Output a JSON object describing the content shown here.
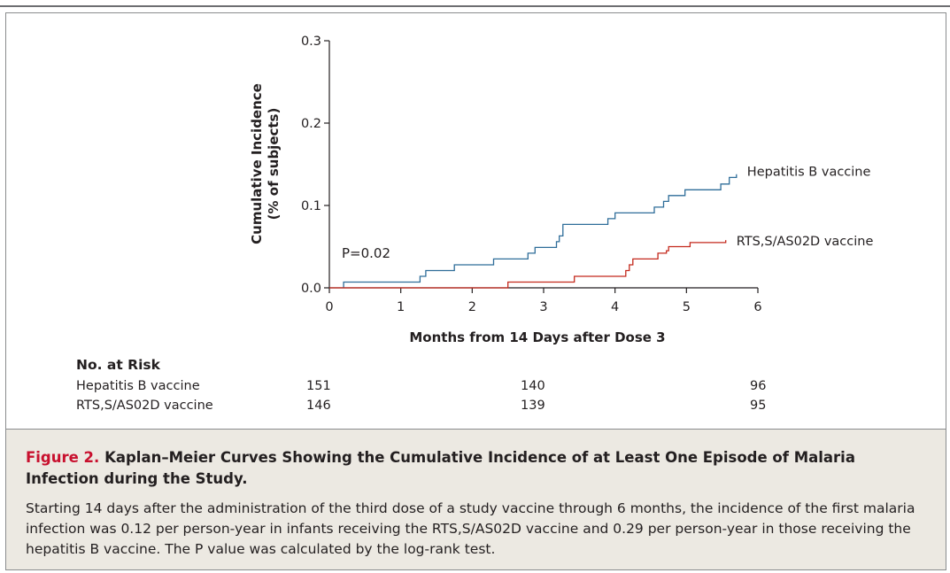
{
  "chart_data": {
    "type": "line",
    "ylabel": "Cumulative Incidence",
    "ylabel_sub": "(% of subjects)",
    "xlabel": "Months from 14 Days after Dose 3",
    "x_ticks": [
      "0",
      "1",
      "2",
      "3",
      "4",
      "5",
      "6"
    ],
    "y_ticks": [
      "0.0",
      "0.1",
      "0.2",
      "0.3"
    ],
    "xlim": [
      0,
      6
    ],
    "ylim": [
      0,
      0.3
    ],
    "grid": false,
    "annotation": "P=0.02",
    "series": [
      {
        "name": "Hepatitis B vaccine",
        "color": "#2e6d99",
        "points": [
          [
            0.2,
            0.0
          ],
          [
            0.2,
            0.007
          ],
          [
            1.27,
            0.007
          ],
          [
            1.27,
            0.014
          ],
          [
            1.35,
            0.014
          ],
          [
            1.35,
            0.021
          ],
          [
            1.75,
            0.021
          ],
          [
            1.75,
            0.028
          ],
          [
            2.3,
            0.028
          ],
          [
            2.3,
            0.035
          ],
          [
            2.78,
            0.035
          ],
          [
            2.78,
            0.042
          ],
          [
            2.88,
            0.042
          ],
          [
            2.88,
            0.049
          ],
          [
            3.18,
            0.049
          ],
          [
            3.18,
            0.056
          ],
          [
            3.22,
            0.056
          ],
          [
            3.22,
            0.063
          ],
          [
            3.27,
            0.063
          ],
          [
            3.27,
            0.077
          ],
          [
            3.9,
            0.077
          ],
          [
            3.9,
            0.084
          ],
          [
            4.0,
            0.084
          ],
          [
            4.0,
            0.091
          ],
          [
            4.55,
            0.091
          ],
          [
            4.55,
            0.098
          ],
          [
            4.68,
            0.098
          ],
          [
            4.68,
            0.105
          ],
          [
            4.75,
            0.105
          ],
          [
            4.75,
            0.112
          ],
          [
            4.98,
            0.112
          ],
          [
            4.98,
            0.119
          ],
          [
            5.48,
            0.119
          ],
          [
            5.48,
            0.126
          ],
          [
            5.6,
            0.126
          ],
          [
            5.6,
            0.134
          ],
          [
            5.7,
            0.134
          ],
          [
            5.7,
            0.138
          ]
        ]
      },
      {
        "name": "RTS,S/AS02D vaccine",
        "color": "#c4281c",
        "points": [
          [
            0.0,
            0.0
          ],
          [
            2.5,
            0.0
          ],
          [
            2.5,
            0.007
          ],
          [
            3.43,
            0.007
          ],
          [
            3.43,
            0.014
          ],
          [
            4.15,
            0.014
          ],
          [
            4.15,
            0.021
          ],
          [
            4.2,
            0.021
          ],
          [
            4.2,
            0.028
          ],
          [
            4.25,
            0.028
          ],
          [
            4.25,
            0.035
          ],
          [
            4.6,
            0.035
          ],
          [
            4.6,
            0.042
          ],
          [
            4.72,
            0.042
          ],
          [
            4.72,
            0.045
          ],
          [
            4.75,
            0.045
          ],
          [
            4.75,
            0.05
          ],
          [
            5.05,
            0.05
          ],
          [
            5.05,
            0.055
          ],
          [
            5.55,
            0.055
          ],
          [
            5.55,
            0.058
          ]
        ]
      }
    ]
  },
  "risk_table": {
    "heading": "No. at Risk",
    "rows": [
      {
        "label": "Hepatitis B vaccine",
        "values": [
          "151",
          "140",
          "96"
        ]
      },
      {
        "label": "RTS,S/AS02D vaccine",
        "values": [
          "146",
          "139",
          "95"
        ]
      }
    ]
  },
  "caption": {
    "label": "Figure 2.",
    "title": "Kaplan–Meier Curves Showing the Cumulative Incidence of at Least One Episode of Malaria Infection during the Study.",
    "body": "Starting 14 days after the administration of the third dose of a study vaccine through 6 months, the incidence of the first malaria infection was 0.12 per person-year in infants receiving the RTS,S/AS02D vaccine and 0.29 per person-year in those receiving the hepatitis B vaccine. The P value was calculated by the log-rank test."
  }
}
